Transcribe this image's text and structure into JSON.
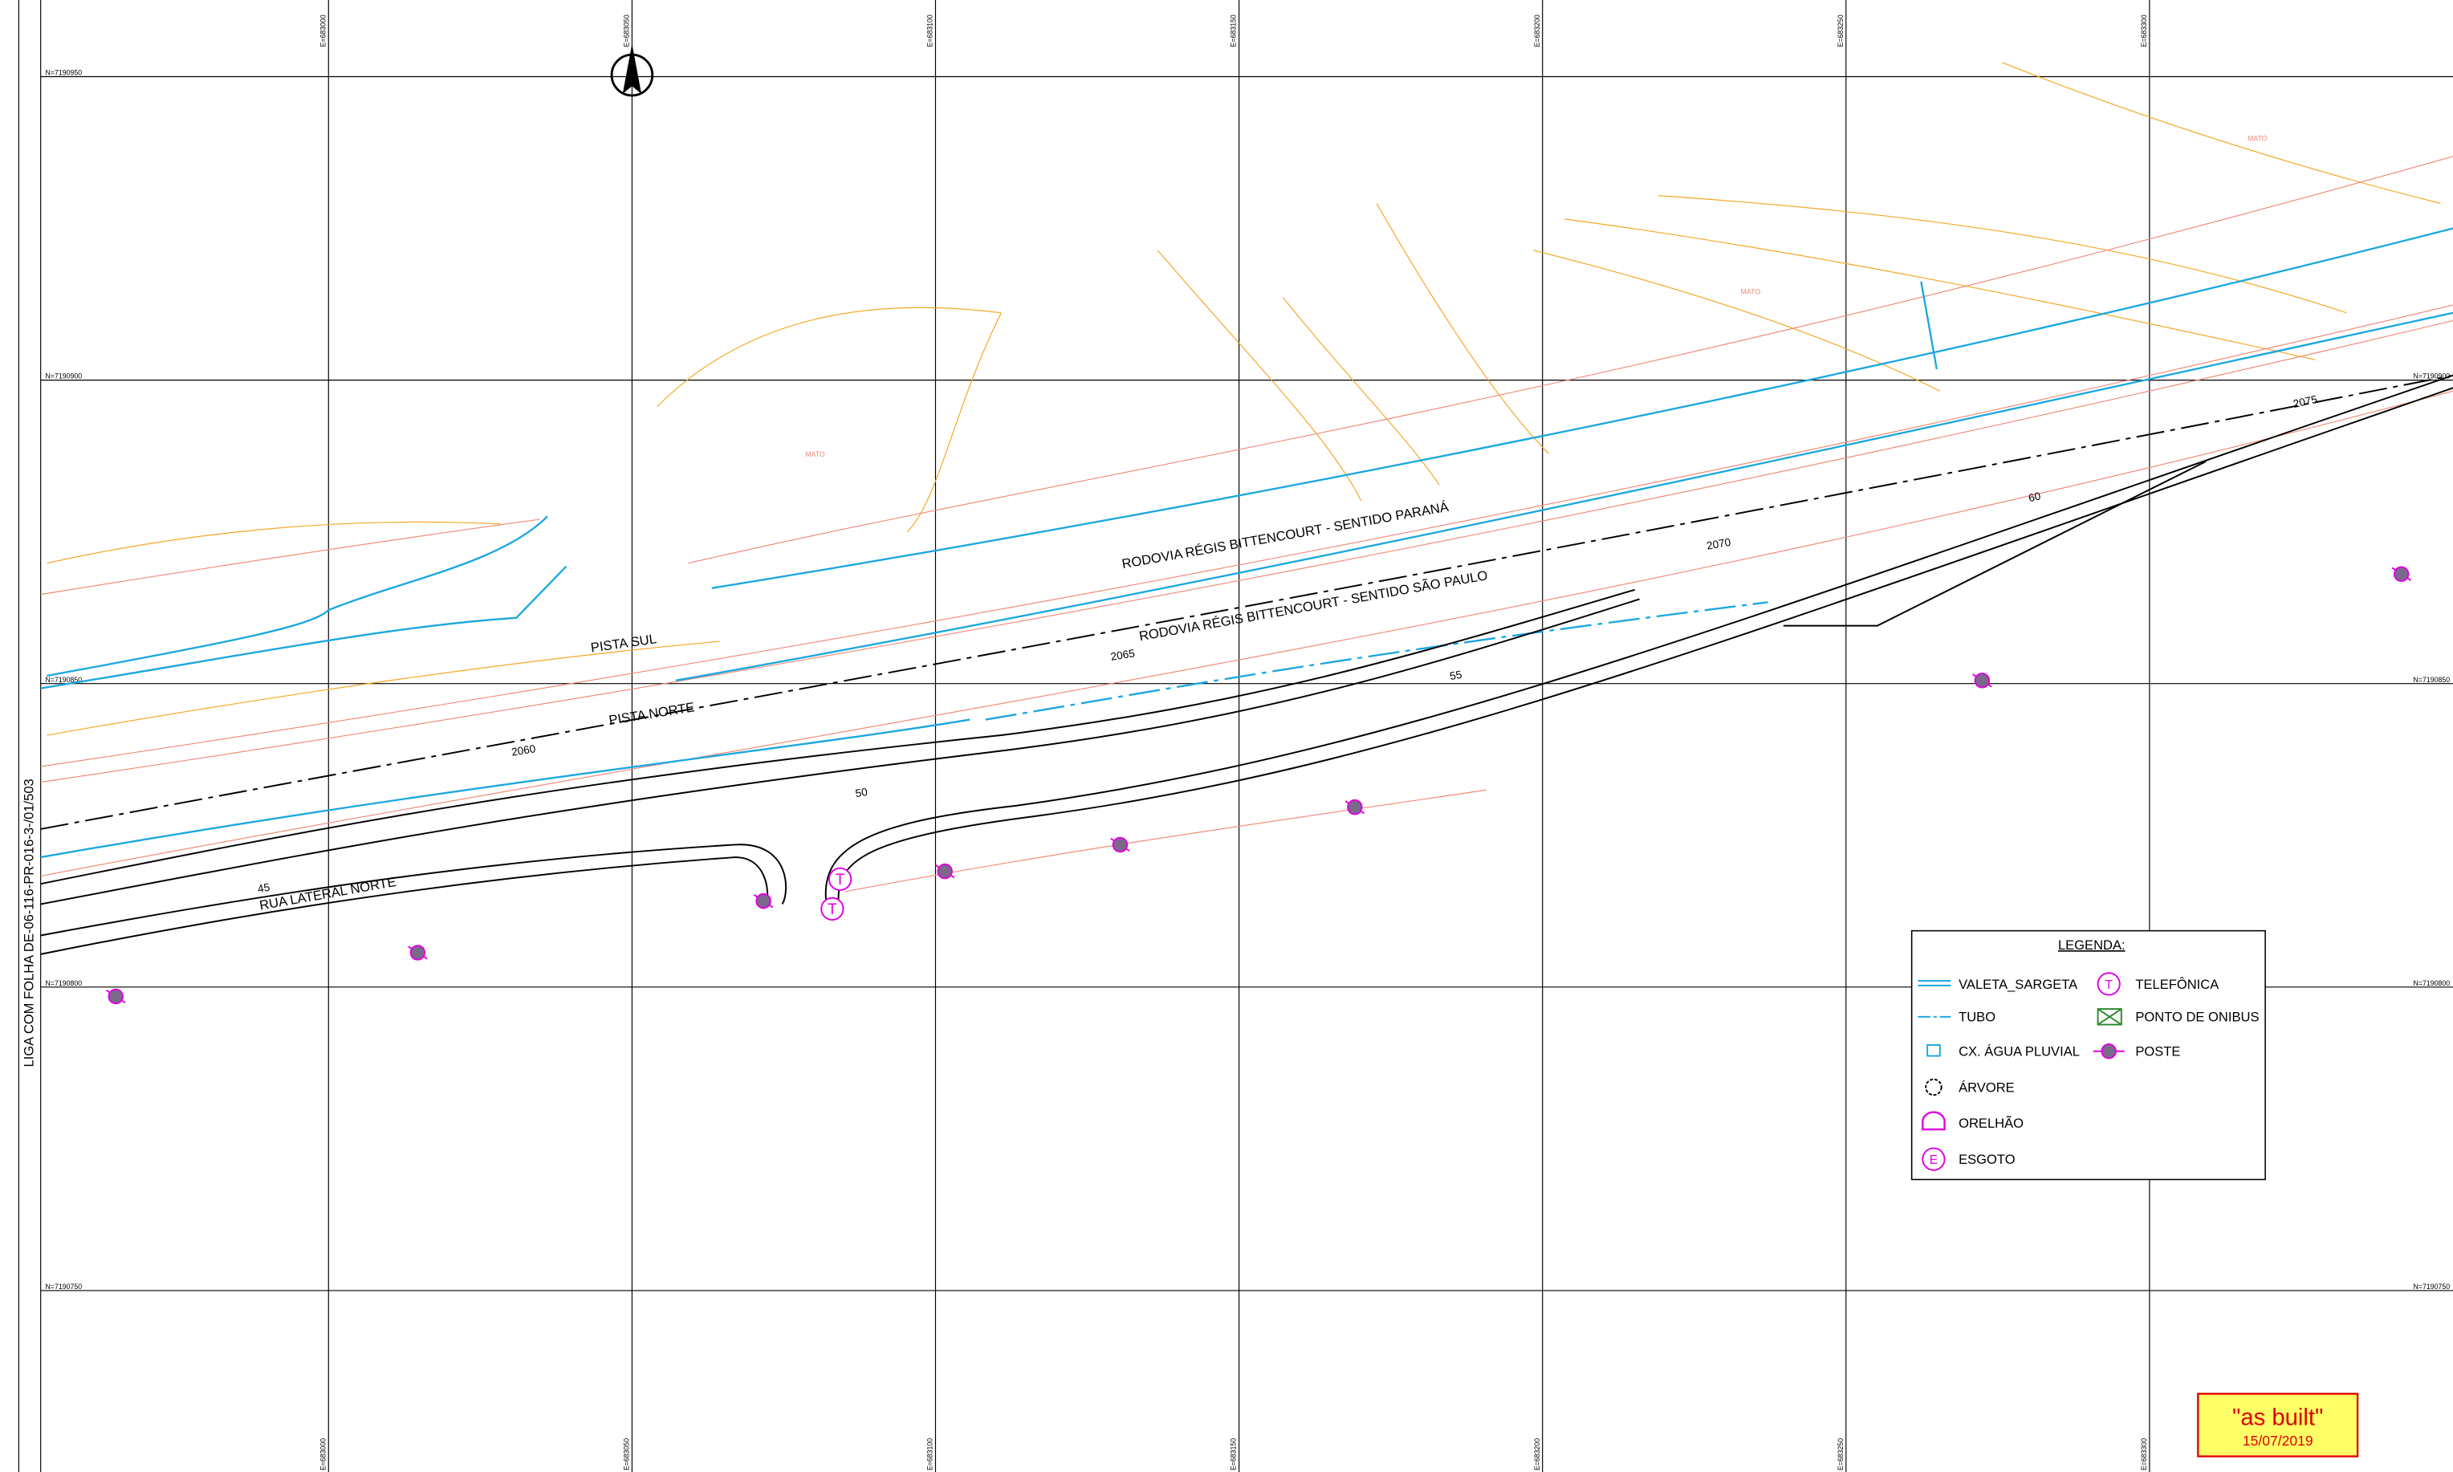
{
  "side_note": "LIGA COM FOLHA DE-06-116-PR-016-3-/01/503",
  "grid": {
    "eastings": [
      "E=683000",
      "E=683050",
      "E=683100",
      "E=683150",
      "E=683200",
      "E=683250",
      "E=683300"
    ],
    "northings": [
      "N=7190950",
      "N=7190900",
      "N=7190850",
      "N=7190800",
      "N=7190750"
    ]
  },
  "roads": {
    "north_highway": "RODOVIA RÉGIS BITTENCOURT - SENTIDO PARANÁ",
    "south_highway": "RODOVIA RÉGIS BITTENCOURT - SENTIDO SÃO PAULO",
    "pista_sul": "PISTA SUL",
    "pista_norte": "PISTA NORTE",
    "lateral": "RUA LATERAL NORTE"
  },
  "stations": [
    "2060",
    "2065",
    "2070",
    "2075",
    "45",
    "50",
    "55",
    "60"
  ],
  "area_labels": [
    "MATO",
    "MATO",
    "MATO"
  ],
  "map_markers": [
    "T",
    "T"
  ],
  "legend": {
    "title": "LEGENDA:",
    "items": [
      {
        "label": "VALETA_SARGETA"
      },
      {
        "label": "TUBO"
      },
      {
        "label": "CX. ÁGUA PLUVIAL"
      },
      {
        "label": "ÁRVORE"
      },
      {
        "label": "ORELHÃO"
      },
      {
        "label": "ESGOTO",
        "symbol": "E"
      },
      {
        "label": "TELEFÔNICA",
        "symbol": "T"
      },
      {
        "label": "PONTO DE ONIBUS"
      },
      {
        "label": "POSTE"
      }
    ]
  },
  "stamp": {
    "title": "\"as built\"",
    "date": "15/07/2019"
  }
}
